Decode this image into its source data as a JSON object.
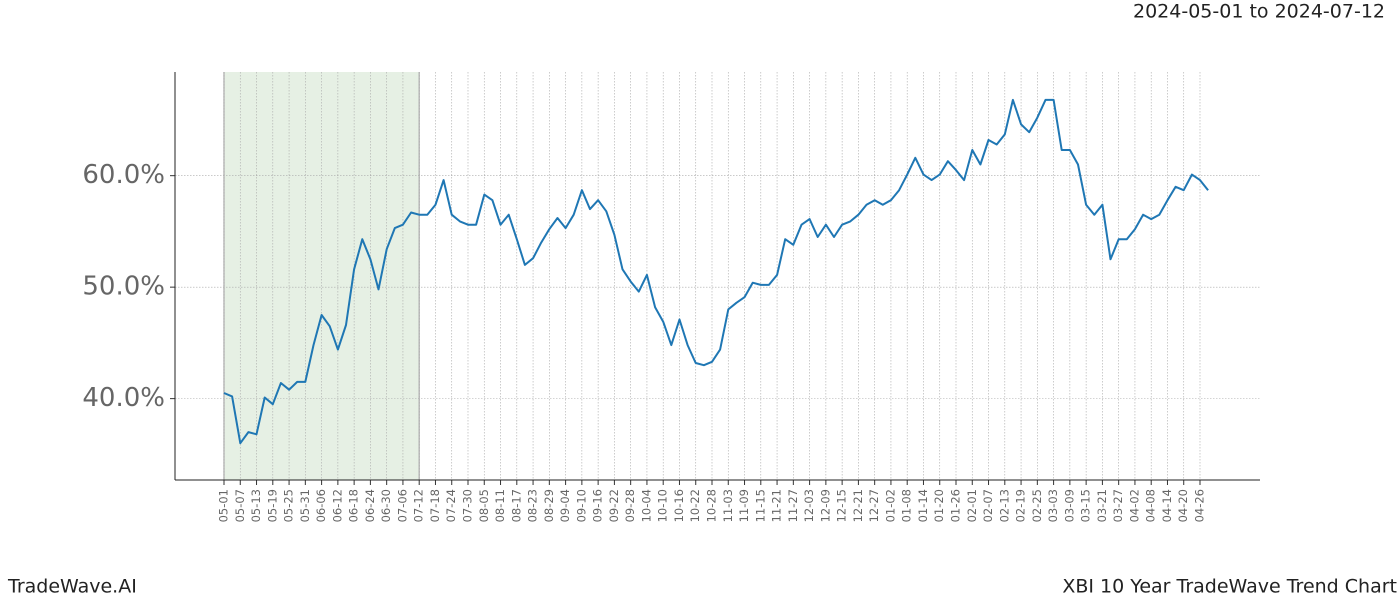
{
  "chart_data": {
    "type": "line",
    "subtitle": "2024-05-01 to 2024-07-12",
    "title": "XBI 10 Year TradeWave Trend Chart",
    "brand": "TradeWave.AI",
    "highlight_range": [
      "05-01",
      "07-12"
    ],
    "highlight_color": "#e6f0e4",
    "grid": true,
    "categories": [
      "05-01",
      null,
      "05-07",
      null,
      "05-13",
      null,
      "05-19",
      null,
      "05-25",
      null,
      "05-31",
      null,
      "06-06",
      null,
      "06-12",
      null,
      "06-18",
      null,
      "06-24",
      null,
      "06-30",
      null,
      "07-06",
      null,
      "07-12",
      null,
      "07-18",
      null,
      "07-24",
      null,
      "07-30",
      null,
      "08-05",
      null,
      "08-11",
      null,
      "08-17",
      null,
      "08-23",
      null,
      "08-29",
      null,
      "09-04",
      null,
      "09-10",
      null,
      "09-16",
      null,
      "09-22",
      null,
      "09-28",
      null,
      "10-04",
      null,
      "10-10",
      null,
      "10-16",
      null,
      "10-22",
      null,
      "10-28",
      null,
      "11-03",
      null,
      "11-09",
      null,
      "11-15",
      null,
      "11-21",
      null,
      "11-27",
      null,
      "12-03",
      null,
      "12-09",
      null,
      "12-15",
      null,
      "12-21",
      null,
      "12-27",
      null,
      "01-02",
      null,
      "01-08",
      null,
      "01-14",
      null,
      "01-20",
      null,
      "01-26",
      null,
      "02-01",
      null,
      "02-07",
      null,
      "02-13",
      null,
      "02-19",
      null,
      "02-25",
      null,
      "03-03",
      null,
      "03-09",
      null,
      "03-15",
      null,
      "03-21",
      null,
      "03-27",
      null,
      "04-02",
      null,
      "04-08",
      null,
      "04-14",
      null,
      "04-20",
      null,
      "04-26",
      null
    ],
    "series": [
      {
        "color": "#1f77b4",
        "values": [
          40.5,
          40.2,
          36.0,
          37.0,
          36.8,
          40.1,
          39.5,
          41.4,
          40.8,
          41.5,
          41.5,
          44.8,
          47.5,
          46.5,
          44.4,
          46.6,
          51.6,
          54.3,
          52.5,
          49.8,
          53.4,
          55.3,
          55.6,
          56.7,
          56.5,
          56.5,
          57.4,
          59.6,
          56.5,
          55.9,
          55.6,
          55.6,
          58.3,
          57.8,
          55.6,
          56.5,
          54.3,
          52.0,
          52.6,
          54.0,
          55.2,
          56.2,
          55.3,
          56.5,
          58.7,
          57.0,
          57.8,
          56.8,
          54.7,
          51.6,
          50.5,
          49.6,
          51.1,
          48.2,
          46.9,
          44.8,
          47.1,
          44.8,
          43.2,
          43.0,
          43.3,
          44.4,
          48.0,
          48.6,
          49.1,
          50.4,
          50.2,
          50.2,
          51.1,
          54.3,
          53.8,
          55.6,
          56.1,
          54.5,
          55.6,
          54.5,
          55.6,
          55.9,
          56.5,
          57.4,
          57.8,
          57.4,
          57.8,
          58.7,
          60.1,
          61.6,
          60.1,
          59.6,
          60.1,
          61.3,
          60.5,
          59.6,
          62.3,
          61.0,
          63.2,
          62.8,
          63.7,
          66.8,
          64.6,
          63.9,
          65.2,
          66.8,
          66.8,
          62.3,
          62.3,
          61.0,
          57.4,
          56.5,
          57.4,
          52.5,
          54.3,
          54.3,
          55.2,
          56.5,
          56.1,
          56.5,
          57.8,
          59.0,
          58.7,
          60.1,
          59.6,
          58.7
        ]
      }
    ],
    "ylim": [
      32.7,
      69.3
    ],
    "yticks": [
      {
        "value": 40,
        "label": "40.0%"
      },
      {
        "value": 50,
        "label": "50.0%"
      },
      {
        "value": 60,
        "label": "60.0%"
      }
    ]
  }
}
